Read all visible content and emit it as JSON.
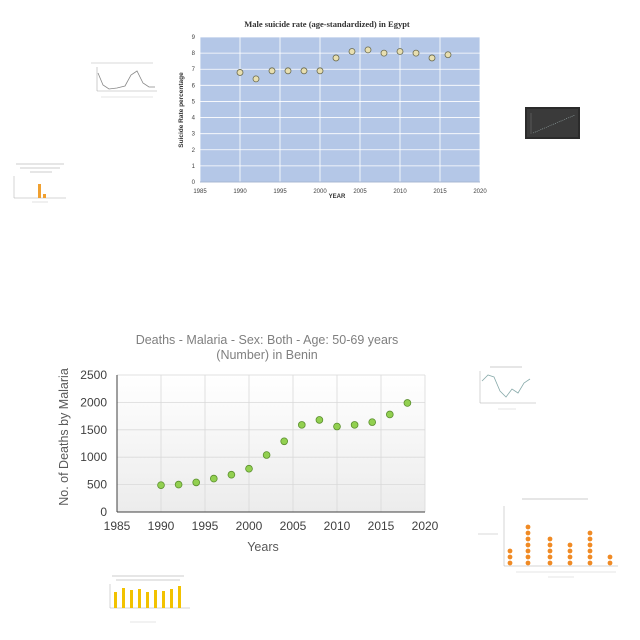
{
  "chart_data": [
    {
      "type": "scatter",
      "title": "Male suicide rate (age-standardized) in Egypt",
      "xlabel": "YEAR",
      "ylabel": "Suicide Rate percentage",
      "xlim": [
        1985,
        2020
      ],
      "ylim": [
        0,
        9
      ],
      "xticks": [
        1985,
        1990,
        1995,
        2000,
        2005,
        2010,
        2015,
        2020
      ],
      "yticks": [
        0,
        1,
        2,
        3,
        4,
        5,
        6,
        7,
        8,
        9
      ],
      "grid": true,
      "colors": {
        "plot_bg": "#b4c7e7",
        "marker": "#e8dfb0",
        "grid": "#ffffff"
      },
      "x": [
        1990,
        1992,
        1994,
        1996,
        1998,
        2000,
        2002,
        2004,
        2006,
        2008,
        2010,
        2012,
        2014,
        2016
      ],
      "y": [
        6.8,
        6.4,
        6.9,
        6.9,
        6.9,
        6.9,
        7.7,
        8.1,
        8.2,
        8.0,
        8.1,
        8.0,
        7.7,
        7.9
      ]
    },
    {
      "type": "scatter",
      "title": "Deaths - Malaria - Sex: Both - Age: 50-69 years (Number) in Benin",
      "title_lines": [
        "Deaths - Malaria - Sex: Both - Age: 50-69 years",
        "(Number) in Benin"
      ],
      "xlabel": "Years",
      "ylabel": "No. of Deaths by Malaria",
      "xlim": [
        1985,
        2020
      ],
      "ylim": [
        0,
        2500
      ],
      "xticks": [
        1985,
        1990,
        1995,
        2000,
        2005,
        2010,
        2015,
        2020
      ],
      "yticks": [
        0,
        500,
        1000,
        1500,
        2000,
        2500
      ],
      "grid": true,
      "colors": {
        "marker": "#92d050",
        "marker_edge": "#5b8f2e",
        "grid": "#d9d9d9"
      },
      "x": [
        1990,
        1992,
        1994,
        1996,
        1998,
        2000,
        2002,
        2004,
        2006,
        2008,
        2010,
        2012,
        2014,
        2016,
        2018
      ],
      "y": [
        490,
        500,
        540,
        610,
        680,
        790,
        1040,
        1290,
        1590,
        1680,
        1560,
        1590,
        1640,
        1780,
        1990
      ]
    }
  ]
}
